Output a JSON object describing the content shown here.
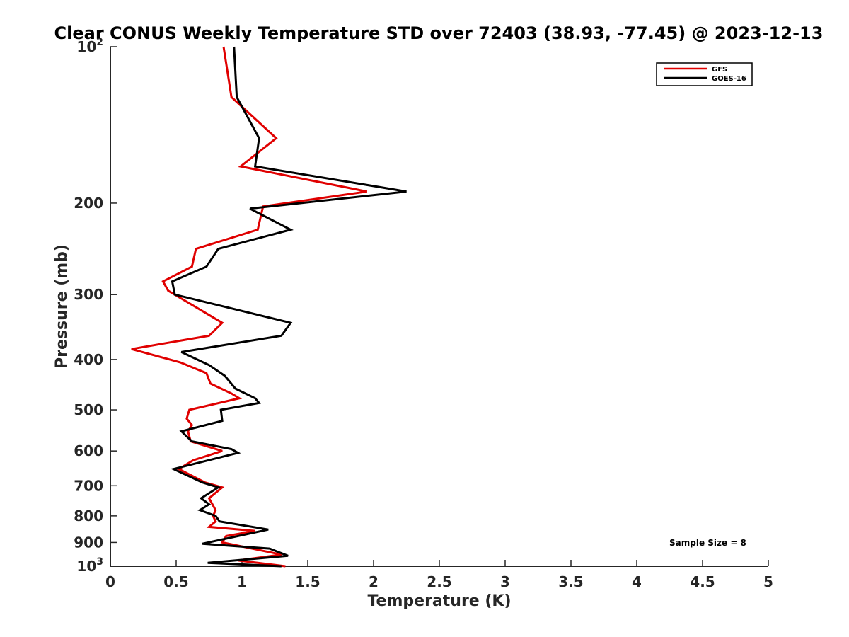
{
  "chart_data": {
    "type": "line",
    "title": "Clear CONUS Weekly Temperature STD over 72403 (38.93, -77.45) @ 2023-12-13",
    "xlabel": "Temperature (K)",
    "ylabel": "Pressure (mb)",
    "xlim": [
      0,
      5
    ],
    "ylim": [
      100,
      1000
    ],
    "y_scale": "log",
    "y_reversed": true,
    "x_ticks": [
      "0",
      "0.5",
      "1",
      "1.5",
      "2",
      "2.5",
      "3",
      "3.5",
      "4",
      "4.5",
      "5"
    ],
    "y_ticks": [
      {
        "value": 100,
        "label": "10",
        "sup": "2"
      },
      {
        "value": 200,
        "label": "200",
        "sup": ""
      },
      {
        "value": 300,
        "label": "300",
        "sup": ""
      },
      {
        "value": 400,
        "label": "400",
        "sup": ""
      },
      {
        "value": 500,
        "label": "500",
        "sup": ""
      },
      {
        "value": 600,
        "label": "600",
        "sup": ""
      },
      {
        "value": 700,
        "label": "700",
        "sup": ""
      },
      {
        "value": 800,
        "label": "800",
        "sup": ""
      },
      {
        "value": 900,
        "label": "900",
        "sup": ""
      },
      {
        "value": 1000,
        "label": "10",
        "sup": "3"
      }
    ],
    "grid": false,
    "legend_position": "top-right",
    "annotation": "Sample Size = 8",
    "series": [
      {
        "name": "GFS",
        "color": "#e00000",
        "points": [
          [
            0.86,
            100
          ],
          [
            0.92,
            125
          ],
          [
            1.26,
            150
          ],
          [
            0.99,
            170
          ],
          [
            1.95,
            190
          ],
          [
            1.16,
            203
          ],
          [
            1.12,
            225
          ],
          [
            0.65,
            245
          ],
          [
            0.62,
            265
          ],
          [
            0.4,
            283
          ],
          [
            0.44,
            295
          ],
          [
            0.85,
            340
          ],
          [
            0.75,
            360
          ],
          [
            0.16,
            382
          ],
          [
            0.53,
            405
          ],
          [
            0.73,
            425
          ],
          [
            0.76,
            445
          ],
          [
            0.92,
            465
          ],
          [
            0.98,
            475
          ],
          [
            0.6,
            500
          ],
          [
            0.58,
            520
          ],
          [
            0.62,
            535
          ],
          [
            0.59,
            550
          ],
          [
            0.61,
            575
          ],
          [
            0.85,
            600
          ],
          [
            0.63,
            625
          ],
          [
            0.52,
            650
          ],
          [
            0.72,
            690
          ],
          [
            0.85,
            705
          ],
          [
            0.75,
            740
          ],
          [
            0.8,
            780
          ],
          [
            0.78,
            800
          ],
          [
            0.8,
            820
          ],
          [
            0.75,
            840
          ],
          [
            1.1,
            855
          ],
          [
            0.88,
            875
          ],
          [
            0.85,
            900
          ],
          [
            1.3,
            950
          ],
          [
            0.97,
            975
          ],
          [
            1.33,
            1000
          ]
        ]
      },
      {
        "name": "GOES-16",
        "color": "#000000",
        "points": [
          [
            0.94,
            100
          ],
          [
            0.96,
            125
          ],
          [
            1.13,
            150
          ],
          [
            1.1,
            170
          ],
          [
            2.25,
            190
          ],
          [
            1.06,
            205
          ],
          [
            1.37,
            225
          ],
          [
            0.82,
            245
          ],
          [
            0.73,
            265
          ],
          [
            0.47,
            283
          ],
          [
            0.49,
            300
          ],
          [
            1.37,
            340
          ],
          [
            1.3,
            360
          ],
          [
            0.54,
            387
          ],
          [
            0.75,
            410
          ],
          [
            0.87,
            430
          ],
          [
            0.95,
            455
          ],
          [
            1.1,
            475
          ],
          [
            1.13,
            485
          ],
          [
            0.84,
            500
          ],
          [
            0.85,
            525
          ],
          [
            0.54,
            550
          ],
          [
            0.62,
            575
          ],
          [
            0.92,
            595
          ],
          [
            0.97,
            605
          ],
          [
            0.48,
            650
          ],
          [
            0.7,
            690
          ],
          [
            0.82,
            705
          ],
          [
            0.69,
            740
          ],
          [
            0.75,
            760
          ],
          [
            0.68,
            780
          ],
          [
            0.8,
            800
          ],
          [
            0.83,
            820
          ],
          [
            1.2,
            850
          ],
          [
            0.7,
            905
          ],
          [
            1.21,
            925
          ],
          [
            1.35,
            955
          ],
          [
            0.74,
            985
          ],
          [
            1.3,
            1000
          ]
        ]
      }
    ]
  }
}
